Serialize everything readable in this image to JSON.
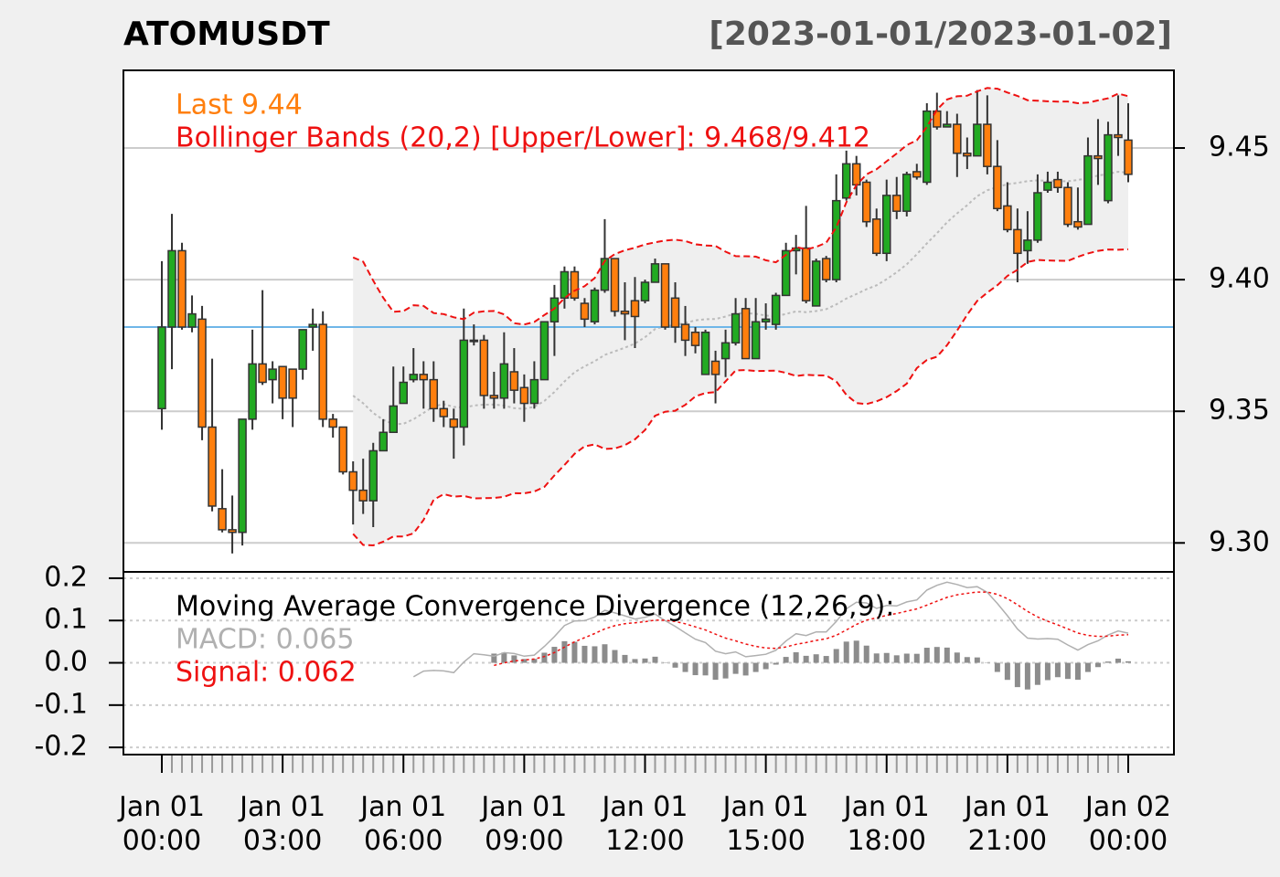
{
  "chart_data": {
    "type": "candlestick",
    "title": "ATOMUSDT",
    "subtitle": "[2023-01-01/2023-01-02]",
    "last_label": "Last 9.44",
    "bands_label": "Bollinger Bands (20,2) [Upper/Lower]: 9.468/9.412",
    "up_color": "#22aa22",
    "down_color": "#ff7f0e",
    "band_color": "#ee1111",
    "reference_line": 9.382,
    "reference_color": "#6fb6e8",
    "categories": [
      "Jan 01\n00:00",
      null,
      null,
      null,
      null,
      null,
      null,
      null,
      null,
      null,
      null,
      null,
      "Jan 01\n03:00",
      null,
      null,
      null,
      null,
      null,
      null,
      null,
      null,
      null,
      null,
      null,
      "Jan 01\n06:00",
      null,
      null,
      null,
      null,
      null,
      null,
      null,
      null,
      null,
      null,
      null,
      "Jan 01\n09:00",
      null,
      null,
      null,
      null,
      null,
      null,
      null,
      null,
      null,
      null,
      null,
      "Jan 01\n12:00",
      null,
      null,
      null,
      null,
      null,
      null,
      null,
      null,
      null,
      null,
      null,
      "Jan 01\n15:00",
      null,
      null,
      null,
      null,
      null,
      null,
      null,
      null,
      null,
      null,
      null,
      "Jan 01\n18:00",
      null,
      null,
      null,
      null,
      null,
      null,
      null,
      null,
      null,
      null,
      null,
      "Jan 01\n21:00",
      null,
      null,
      null,
      null,
      null,
      null,
      null,
      null,
      null,
      null,
      null,
      "Jan 02\n00:00"
    ],
    "open": [
      9.351,
      9.382,
      9.411,
      9.382,
      9.385,
      9.344,
      9.313,
      9.305,
      9.304,
      9.347,
      9.368,
      9.362,
      9.367,
      9.366,
      9.366,
      9.382,
      9.383,
      9.347,
      9.344,
      9.327,
      9.32,
      9.316,
      9.335,
      9.342,
      9.353,
      9.362,
      9.364,
      9.362,
      9.351,
      9.347,
      9.344,
      9.377,
      9.377,
      9.356,
      9.355,
      9.365,
      9.359,
      9.353,
      9.362,
      9.384,
      9.393,
      9.403,
      9.391,
      9.384,
      9.396,
      9.408,
      9.388,
      9.392,
      9.392,
      9.399,
      9.406,
      9.393,
      9.383,
      9.38,
      9.364,
      9.369,
      9.37,
      9.376,
      9.389,
      9.37,
      9.384,
      9.383,
      9.394,
      9.411,
      9.412,
      9.39,
      9.408,
      9.4,
      9.431,
      9.444,
      9.437,
      9.423,
      9.41,
      9.432,
      9.426,
      9.441,
      9.437,
      9.464,
      9.458,
      9.459,
      9.448,
      9.447,
      9.459,
      9.443,
      9.428,
      9.419,
      9.411,
      9.415,
      9.434,
      9.438,
      9.435,
      9.422,
      9.421,
      9.447,
      9.43,
      9.455,
      9.453
    ],
    "high": [
      9.407,
      9.425,
      9.414,
      9.394,
      9.39,
      9.37,
      9.328,
      9.318,
      9.347,
      9.381,
      9.396,
      9.369,
      9.367,
      9.366,
      9.381,
      9.389,
      9.388,
      9.349,
      9.344,
      9.331,
      9.332,
      9.338,
      9.347,
      9.367,
      9.367,
      9.374,
      9.369,
      9.369,
      9.354,
      9.351,
      9.389,
      9.383,
      9.379,
      9.365,
      9.38,
      9.374,
      9.364,
      9.369,
      9.384,
      9.398,
      9.405,
      9.405,
      9.393,
      9.397,
      9.423,
      9.408,
      9.399,
      9.401,
      9.4,
      9.408,
      9.406,
      9.399,
      9.39,
      9.382,
      9.381,
      9.373,
      9.381,
      9.393,
      9.393,
      9.393,
      9.391,
      9.395,
      9.414,
      9.417,
      9.428,
      9.408,
      9.409,
      9.44,
      9.449,
      9.447,
      9.438,
      9.427,
      9.438,
      9.439,
      9.441,
      9.444,
      9.467,
      9.471,
      9.464,
      9.463,
      9.454,
      9.472,
      9.47,
      9.453,
      9.437,
      9.427,
      9.426,
      9.44,
      9.441,
      9.441,
      9.437,
      9.435,
      9.454,
      9.461,
      9.46,
      9.47,
      9.467
    ],
    "low": [
      9.343,
      9.366,
      9.381,
      9.38,
      9.339,
      9.312,
      9.304,
      9.296,
      9.299,
      9.343,
      9.36,
      9.353,
      9.347,
      9.344,
      9.362,
      9.373,
      9.344,
      9.34,
      9.326,
      9.307,
      9.311,
      9.306,
      9.335,
      9.342,
      9.353,
      9.361,
      9.351,
      9.346,
      9.344,
      9.332,
      9.337,
      9.375,
      9.351,
      9.351,
      9.351,
      9.353,
      9.346,
      9.351,
      9.362,
      9.371,
      9.389,
      9.392,
      9.382,
      9.383,
      9.395,
      9.386,
      9.377,
      9.374,
      9.391,
      9.399,
      9.381,
      9.376,
      9.371,
      9.372,
      9.364,
      9.353,
      9.363,
      9.375,
      9.37,
      9.37,
      9.381,
      9.381,
      9.394,
      9.402,
      9.391,
      9.39,
      9.399,
      9.399,
      9.43,
      9.432,
      9.42,
      9.409,
      9.407,
      9.423,
      9.424,
      9.438,
      9.436,
      9.457,
      9.458,
      9.439,
      9.442,
      9.447,
      9.44,
      9.426,
      9.418,
      9.399,
      9.406,
      9.414,
      9.433,
      9.433,
      9.42,
      9.419,
      9.421,
      9.436,
      9.429,
      9.447,
      9.437
    ],
    "close": [
      9.382,
      9.411,
      9.382,
      9.387,
      9.344,
      9.314,
      9.305,
      9.304,
      9.347,
      9.368,
      9.361,
      9.366,
      9.355,
      9.355,
      9.381,
      9.383,
      9.347,
      9.344,
      9.327,
      9.32,
      9.316,
      9.335,
      9.342,
      9.352,
      9.361,
      9.364,
      9.362,
      9.351,
      9.348,
      9.344,
      9.377,
      9.377,
      9.356,
      9.355,
      9.368,
      9.358,
      9.353,
      9.362,
      9.384,
      9.393,
      9.403,
      9.393,
      9.385,
      9.396,
      9.408,
      9.388,
      9.387,
      9.386,
      9.399,
      9.406,
      9.382,
      9.382,
      9.377,
      9.375,
      9.38,
      9.364,
      9.376,
      9.387,
      9.37,
      9.384,
      9.385,
      9.394,
      9.411,
      9.412,
      9.392,
      9.407,
      9.4,
      9.43,
      9.444,
      9.436,
      9.422,
      9.41,
      9.432,
      9.426,
      9.44,
      9.439,
      9.464,
      9.458,
      9.459,
      9.448,
      9.447,
      9.459,
      9.443,
      9.427,
      9.419,
      9.41,
      9.415,
      9.433,
      9.437,
      9.435,
      9.421,
      9.42,
      9.447,
      9.446,
      9.455,
      9.454,
      9.44
    ],
    "ylim": [
      9.289,
      9.4795
    ],
    "yticks": [
      {
        "value": 9.3,
        "label": "9.30"
      },
      9.35,
      {
        "value": 9.4,
        "label": "9.40"
      },
      9.45
    ],
    "grid": true,
    "macd": {
      "title": "Moving Average Convergence Divergence (12,26,9):",
      "macd_label": "MACD: 0.065",
      "signal_label": "Signal: 0.062",
      "macd_color": "#b0b0b0",
      "signal_color": "#ee1111",
      "hist_color": "#8c8c8c",
      "ylim": [
        -0.217,
        0.215
      ],
      "yticks": [
        0.2,
        0.1,
        {
          "value": 0,
          "label": "0.0"
        },
        -0.1,
        -0.2
      ]
    }
  }
}
